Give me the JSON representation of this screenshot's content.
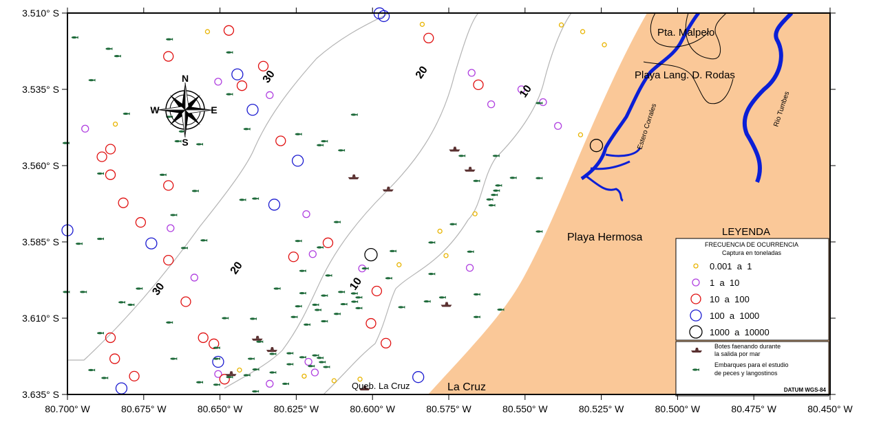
{
  "colors": {
    "land": "#fac898",
    "river": "#0b1fd6",
    "contour": "#b4b4b4",
    "class_1": "#e8b400",
    "class_2": "#b040e0",
    "class_3": "#e01010",
    "class_4": "#1a1ad0",
    "class_5": "#000000",
    "boat": "#5a3030",
    "fish": "#1e6a3a"
  },
  "axes": {
    "lat_ticks": [
      "3.510° S",
      "3.535° S",
      "3.560° S",
      "3.585° S",
      "3.610° S",
      "3.635° S"
    ],
    "lon_ticks": [
      "80.700° W",
      "80.675° W",
      "80.650° W",
      "80.625° W",
      "80.600° W",
      "80.575° W",
      "80.550° W",
      "80.525° W",
      "80.500° W",
      "80.475° W",
      "80.450° W"
    ]
  },
  "compass": {
    "n": "N",
    "s": "S",
    "e": "E",
    "w": "W"
  },
  "contours": [
    {
      "depth": "30",
      "labels": [
        {
          "lon": -80.6331,
          "lat": 3.5315
        },
        {
          "lon": -80.6693,
          "lat": 3.6011
        }
      ]
    },
    {
      "depth": "20",
      "labels": [
        {
          "lon": -80.583,
          "lat": 3.5301
        },
        {
          "lon": -80.6437,
          "lat": 3.5942
        }
      ]
    },
    {
      "depth": "10",
      "labels": [
        {
          "lon": -80.5489,
          "lat": 3.5363
        },
        {
          "lon": -80.6046,
          "lat": 3.5994
        }
      ]
    }
  ],
  "place_labels": {
    "pta_malpelo": "Pta. Malpelo",
    "playa_lang": "Playa Lang. D. Rodas",
    "estero": "Estero Corrales",
    "rio": "Rio Tumbes",
    "playa_hermosa": "Playa Hermosa",
    "queb": "Queb. La Cruz",
    "la_cruz": "La Cruz"
  },
  "legend": {
    "title": "LEYENDA",
    "subtitle": "FRECUENCIA DE OCURRENCIA",
    "subtitle2": "Captura en toneladas",
    "classes": [
      "0.001  a  1",
      "1  a  10",
      "10  a  100",
      "100  a  1000",
      "1000  a  10000"
    ],
    "boats_line1": "Botes faenando durante",
    "boats_line2": "la salida por mar",
    "fish_line1": "Embarques para el estudio",
    "fish_line2": "de peces y langostinos",
    "datum": "DATUM WGS-84"
  },
  "catch_points": [
    {
      "lon": -80.6541,
      "lat": 3.5161,
      "cls": 1
    },
    {
      "lon": -80.5837,
      "lat": 3.5137,
      "cls": 1
    },
    {
      "lon": -80.6843,
      "lat": 3.5464,
      "cls": 1
    },
    {
      "lon": -80.5381,
      "lat": 3.5139,
      "cls": 1
    },
    {
      "lon": -80.5311,
      "lat": 3.5161,
      "cls": 1
    },
    {
      "lon": -80.524,
      "lat": 3.5204,
      "cls": 1
    },
    {
      "lon": -80.5318,
      "lat": 3.5499,
      "cls": 1
    },
    {
      "lon": -80.5664,
      "lat": 3.5758,
      "cls": 1
    },
    {
      "lon": -80.5779,
      "lat": 3.5815,
      "cls": 1
    },
    {
      "lon": -80.5759,
      "lat": 3.5895,
      "cls": 1
    },
    {
      "lon": -80.5913,
      "lat": 3.5925,
      "cls": 1
    },
    {
      "lon": -80.6436,
      "lat": 3.627,
      "cls": 1
    },
    {
      "lon": -80.6224,
      "lat": 3.629,
      "cls": 1
    },
    {
      "lon": -80.6126,
      "lat": 3.6305,
      "cls": 1
    },
    {
      "lon": -80.6041,
      "lat": 3.63,
      "cls": 1
    },
    {
      "lon": -80.6942,
      "lat": 3.5479,
      "cls": 2
    },
    {
      "lon": -80.6506,
      "lat": 3.5325,
      "cls": 2
    },
    {
      "lon": -80.6337,
      "lat": 3.5369,
      "cls": 2
    },
    {
      "lon": -80.5675,
      "lat": 3.5296,
      "cls": 2
    },
    {
      "lon": -80.5512,
      "lat": 3.535,
      "cls": 2
    },
    {
      "lon": -80.5611,
      "lat": 3.5399,
      "cls": 2
    },
    {
      "lon": -80.5441,
      "lat": 3.5392,
      "cls": 2
    },
    {
      "lon": -80.5392,
      "lat": 3.547,
      "cls": 2
    },
    {
      "lon": -80.6662,
      "lat": 3.5805,
      "cls": 2
    },
    {
      "lon": -80.6217,
      "lat": 3.5759,
      "cls": 2
    },
    {
      "lon": -80.6196,
      "lat": 3.589,
      "cls": 2
    },
    {
      "lon": -80.6034,
      "lat": 3.5937,
      "cls": 2
    },
    {
      "lon": -80.5681,
      "lat": 3.5935,
      "cls": 2
    },
    {
      "lon": -80.6584,
      "lat": 3.5967,
      "cls": 2
    },
    {
      "lon": -80.621,
      "lat": 3.6243,
      "cls": 2
    },
    {
      "lon": -80.6189,
      "lat": 3.6278,
      "cls": 2
    },
    {
      "lon": -80.6337,
      "lat": 3.6315,
      "cls": 2
    },
    {
      "lon": -80.6506,
      "lat": 3.6283,
      "cls": 2
    },
    {
      "lon": -80.6471,
      "lat": 3.5157,
      "cls": 3
    },
    {
      "lon": -80.5816,
      "lat": 3.5182,
      "cls": 3
    },
    {
      "lon": -80.6669,
      "lat": 3.5242,
      "cls": 3
    },
    {
      "lon": -80.6358,
      "lat": 3.5274,
      "cls": 3
    },
    {
      "lon": -80.6428,
      "lat": 3.5338,
      "cls": 3
    },
    {
      "lon": -80.5653,
      "lat": 3.5335,
      "cls": 3
    },
    {
      "lon": -80.6301,
      "lat": 3.5519,
      "cls": 3
    },
    {
      "lon": -80.6859,
      "lat": 3.5546,
      "cls": 3
    },
    {
      "lon": -80.6887,
      "lat": 3.5571,
      "cls": 3
    },
    {
      "lon": -80.6859,
      "lat": 3.563,
      "cls": 3
    },
    {
      "lon": -80.6669,
      "lat": 3.5665,
      "cls": 3
    },
    {
      "lon": -80.6817,
      "lat": 3.5722,
      "cls": 3
    },
    {
      "lon": -80.676,
      "lat": 3.5786,
      "cls": 3
    },
    {
      "lon": -80.6669,
      "lat": 3.591,
      "cls": 3
    },
    {
      "lon": -80.6612,
      "lat": 3.6046,
      "cls": 3
    },
    {
      "lon": -80.6259,
      "lat": 3.5899,
      "cls": 3
    },
    {
      "lon": -80.6146,
      "lat": 3.5853,
      "cls": 3
    },
    {
      "lon": -80.5986,
      "lat": 3.6011,
      "cls": 3
    },
    {
      "lon": -80.6005,
      "lat": 3.6117,
      "cls": 3
    },
    {
      "lon": -80.5956,
      "lat": 3.6182,
      "cls": 3
    },
    {
      "lon": -80.6859,
      "lat": 3.6164,
      "cls": 3
    },
    {
      "lon": -80.6555,
      "lat": 3.6164,
      "cls": 3
    },
    {
      "lon": -80.652,
      "lat": 3.6184,
      "cls": 3
    },
    {
      "lon": -80.6845,
      "lat": 3.6233,
      "cls": 3
    },
    {
      "lon": -80.6781,
      "lat": 3.629,
      "cls": 3
    },
    {
      "lon": -80.6485,
      "lat": 3.63,
      "cls": 3
    },
    {
      "lon": -80.5977,
      "lat": 3.5101,
      "cls": 4
    },
    {
      "lon": -80.5963,
      "lat": 3.511,
      "cls": 4
    },
    {
      "lon": -80.6443,
      "lat": 3.5301,
      "cls": 4
    },
    {
      "lon": -80.6393,
      "lat": 3.5417,
      "cls": 4
    },
    {
      "lon": -80.6245,
      "lat": 3.5584,
      "cls": 4
    },
    {
      "lon": -80.6322,
      "lat": 3.5728,
      "cls": 4
    },
    {
      "lon": -80.7,
      "lat": 3.5812,
      "cls": 4
    },
    {
      "lon": -80.6725,
      "lat": 3.5855,
      "cls": 4
    },
    {
      "lon": -80.6506,
      "lat": 3.6243,
      "cls": 4
    },
    {
      "lon": -80.585,
      "lat": 3.6293,
      "cls": 4
    },
    {
      "lon": -80.6823,
      "lat": 3.633,
      "cls": 4
    },
    {
      "lon": -80.6005,
      "lat": 3.5892,
      "cls": 5
    },
    {
      "lon": -80.5266,
      "lat": 3.5534,
      "cls": 5
    }
  ],
  "boats": [
    {
      "lon": -80.5731,
      "lat": 3.5547
    },
    {
      "lon": -80.5681,
      "lat": 3.5613
    },
    {
      "lon": -80.6062,
      "lat": 3.5638
    },
    {
      "lon": -80.5949,
      "lat": 3.5678
    },
    {
      "lon": -80.5758,
      "lat": 3.6056
    },
    {
      "lon": -80.6378,
      "lat": 3.6167
    },
    {
      "lon": -80.633,
      "lat": 3.6204
    },
    {
      "lon": -80.6464,
      "lat": 3.6283
    },
    {
      "lon": -80.6026,
      "lat": 3.633
    }
  ],
  "fish": [
    {
      "lon": -80.6978,
      "lat": 3.518
    },
    {
      "lon": -80.6668,
      "lat": 3.5186
    },
    {
      "lon": -80.6866,
      "lat": 3.5217
    },
    {
      "lon": -80.6838,
      "lat": 3.5241
    },
    {
      "lon": -80.6471,
      "lat": 3.5229
    },
    {
      "lon": -80.6922,
      "lat": 3.532
    },
    {
      "lon": -80.6471,
      "lat": 3.5366
    },
    {
      "lon": -80.6809,
      "lat": 3.543
    },
    {
      "lon": -80.6668,
      "lat": 3.544
    },
    {
      "lon": -80.6414,
      "lat": 3.548
    },
    {
      "lon": -80.6626,
      "lat": 3.5488
    },
    {
      "lon": -80.664,
      "lat": 3.552
    },
    {
      "lon": -80.7007,
      "lat": 3.5526
    },
    {
      "lon": -80.6894,
      "lat": 3.5626
    },
    {
      "lon": -80.6689,
      "lat": 3.563
    },
    {
      "lon": -80.6569,
      "lat": 3.553
    },
    {
      "lon": -80.6174,
      "lat": 3.5533
    },
    {
      "lon": -80.6104,
      "lat": 3.555
    },
    {
      "lon": -80.6245,
      "lat": 3.5497
    },
    {
      "lon": -80.616,
      "lat": 3.552
    },
    {
      "lon": -80.6062,
      "lat": 3.5433
    },
    {
      "lon": -80.6583,
      "lat": 3.5683
    },
    {
      "lon": -80.6428,
      "lat": 3.5712
    },
    {
      "lon": -80.6654,
      "lat": 3.5762
    },
    {
      "lon": -80.6386,
      "lat": 3.5708
    },
    {
      "lon": -80.6118,
      "lat": 3.5785
    },
    {
      "lon": -80.6894,
      "lat": 3.584
    },
    {
      "lon": -80.6555,
      "lat": 3.5845
    },
    {
      "lon": -80.6619,
      "lat": 3.587
    },
    {
      "lon": -80.6245,
      "lat": 3.5847
    },
    {
      "lon": -80.6174,
      "lat": 3.5868
    },
    {
      "lon": -80.5935,
      "lat": 3.588
    },
    {
      "lon": -80.5456,
      "lat": 3.5395
    },
    {
      "lon": -80.5709,
      "lat": 3.5568
    },
    {
      "lon": -80.5597,
      "lat": 3.5568
    },
    {
      "lon": -80.5541,
      "lat": 3.564
    },
    {
      "lon": -80.5661,
      "lat": 3.565
    },
    {
      "lon": -80.5589,
      "lat": 3.5665
    },
    {
      "lon": -80.5596,
      "lat": 3.5682
    },
    {
      "lon": -80.5603,
      "lat": 3.5696
    },
    {
      "lon": -80.5618,
      "lat": 3.5711
    },
    {
      "lon": -80.5611,
      "lat": 3.573
    },
    {
      "lon": -80.5456,
      "lat": 3.5641
    },
    {
      "lon": -80.5456,
      "lat": 3.5816
    },
    {
      "lon": -80.5738,
      "lat": 3.5792
    },
    {
      "lon": -80.5808,
      "lat": 3.5852
    },
    {
      "lon": -80.5681,
      "lat": 3.5882
    },
    {
      "lon": -80.6026,
      "lat": 3.5937
    },
    {
      "lon": -80.6231,
      "lat": 3.5945
    },
    {
      "lon": -80.6146,
      "lat": 3.596
    },
    {
      "lon": -80.5949,
      "lat": 3.5969
    },
    {
      "lon": -80.5808,
      "lat": 3.5955
    },
    {
      "lon": -80.6315,
      "lat": 3.6003
    },
    {
      "lon": -80.6231,
      "lat": 3.6018
    },
    {
      "lon": -80.616,
      "lat": 3.6026
    },
    {
      "lon": -80.6104,
      "lat": 3.6014
    },
    {
      "lon": -80.6062,
      "lat": 3.6019
    },
    {
      "lon": -80.6047,
      "lat": 3.6032
    },
    {
      "lon": -80.6061,
      "lat": 3.6046
    },
    {
      "lon": -80.6096,
      "lat": 3.6054
    },
    {
      "lon": -80.6047,
      "lat": 3.6067
    },
    {
      "lon": -80.6189,
      "lat": 3.6056
    },
    {
      "lon": -80.6245,
      "lat": 3.6061
    },
    {
      "lon": -80.6181,
      "lat": 3.6073
    },
    {
      "lon": -80.6259,
      "lat": 3.6096
    },
    {
      "lon": -80.616,
      "lat": 3.611
    },
    {
      "lon": -80.6118,
      "lat": 3.6086
    },
    {
      "lon": -80.6217,
      "lat": 3.6121
    },
    {
      "lon": -80.5907,
      "lat": 3.6064
    },
    {
      "lon": -80.5823,
      "lat": 3.6045
    },
    {
      "lon": -80.5773,
      "lat": 3.6032
    },
    {
      "lon": -80.566,
      "lat": 3.6022
    },
    {
      "lon": -80.5582,
      "lat": 3.6072
    },
    {
      "lon": -80.566,
      "lat": 3.6096
    },
    {
      "lon": -80.6767,
      "lat": 3.6003
    },
    {
      "lon": -80.6824,
      "lat": 3.6048
    },
    {
      "lon": -80.6485,
      "lat": 3.61
    },
    {
      "lon": -80.6393,
      "lat": 3.6102
    },
    {
      "lon": -80.6668,
      "lat": 3.6114
    },
    {
      "lon": -80.6894,
      "lat": 3.6149
    },
    {
      "lon": -80.6513,
      "lat": 3.6197
    },
    {
      "lon": -80.6372,
      "lat": 3.6177
    },
    {
      "lon": -80.6654,
      "lat": 3.6233
    },
    {
      "lon": -80.6513,
      "lat": 3.6233
    },
    {
      "lon": -80.64,
      "lat": 3.6233
    },
    {
      "lon": -80.6329,
      "lat": 3.6217
    },
    {
      "lon": -80.6273,
      "lat": 3.6215
    },
    {
      "lon": -80.6231,
      "lat": 3.6228
    },
    {
      "lon": -80.6189,
      "lat": 3.6222
    },
    {
      "lon": -80.6174,
      "lat": 3.623
    },
    {
      "lon": -80.6167,
      "lat": 3.6244
    },
    {
      "lon": -80.6203,
      "lat": 3.6257
    },
    {
      "lon": -80.6273,
      "lat": 3.6251
    },
    {
      "lon": -80.6153,
      "lat": 3.626
    },
    {
      "lon": -80.6329,
      "lat": 3.6278
    },
    {
      "lon": -80.6385,
      "lat": 3.6268
    },
    {
      "lon": -80.6414,
      "lat": 3.6287
    },
    {
      "lon": -80.6471,
      "lat": 3.6293
    },
    {
      "lon": -80.6386,
      "lat": 3.634
    },
    {
      "lon": -80.6287,
      "lat": 3.6315
    },
    {
      "lon": -80.6923,
      "lat": 3.627
    },
    {
      "lon": -80.688,
      "lat": 3.6296
    },
    {
      "lon": -80.7006,
      "lat": 3.6014
    },
    {
      "lon": -80.695,
      "lat": 3.6014
    },
    {
      "lon": -80.6964,
      "lat": 3.5856
    },
    {
      "lon": -80.6794,
      "lat": 3.6056
    },
    {
      "lon": -80.6569,
      "lat": 3.631
    },
    {
      "lon": -80.6513,
      "lat": 3.6318
    }
  ]
}
